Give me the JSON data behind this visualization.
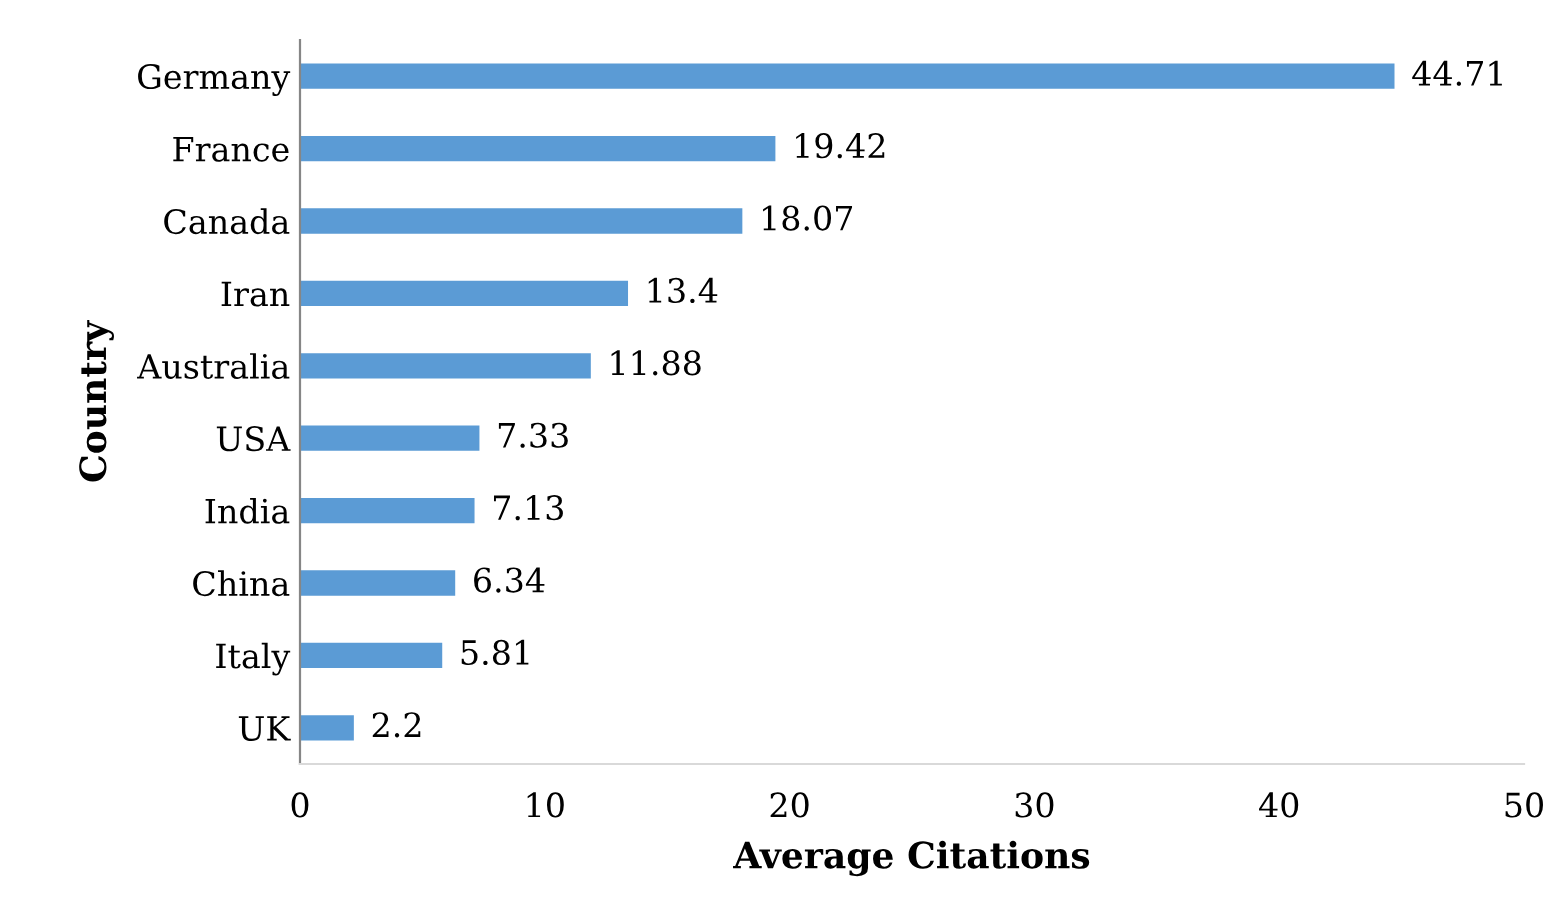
{
  "chart_data": {
    "type": "bar",
    "orientation": "horizontal",
    "xlabel": "Average Citations",
    "ylabel": "Country",
    "categories": [
      "Germany",
      "France",
      "Canada",
      "Iran",
      "Australia",
      "USA",
      "India",
      "China",
      "Italy",
      "UK"
    ],
    "values": [
      44.71,
      19.42,
      18.07,
      13.4,
      11.88,
      7.33,
      7.13,
      6.34,
      5.81,
      2.2
    ],
    "color": "#5b9bd5",
    "xlim": [
      0,
      50
    ],
    "xticks": [
      0,
      10,
      20,
      30,
      40,
      50
    ],
    "grid": false,
    "data_labels": true
  }
}
